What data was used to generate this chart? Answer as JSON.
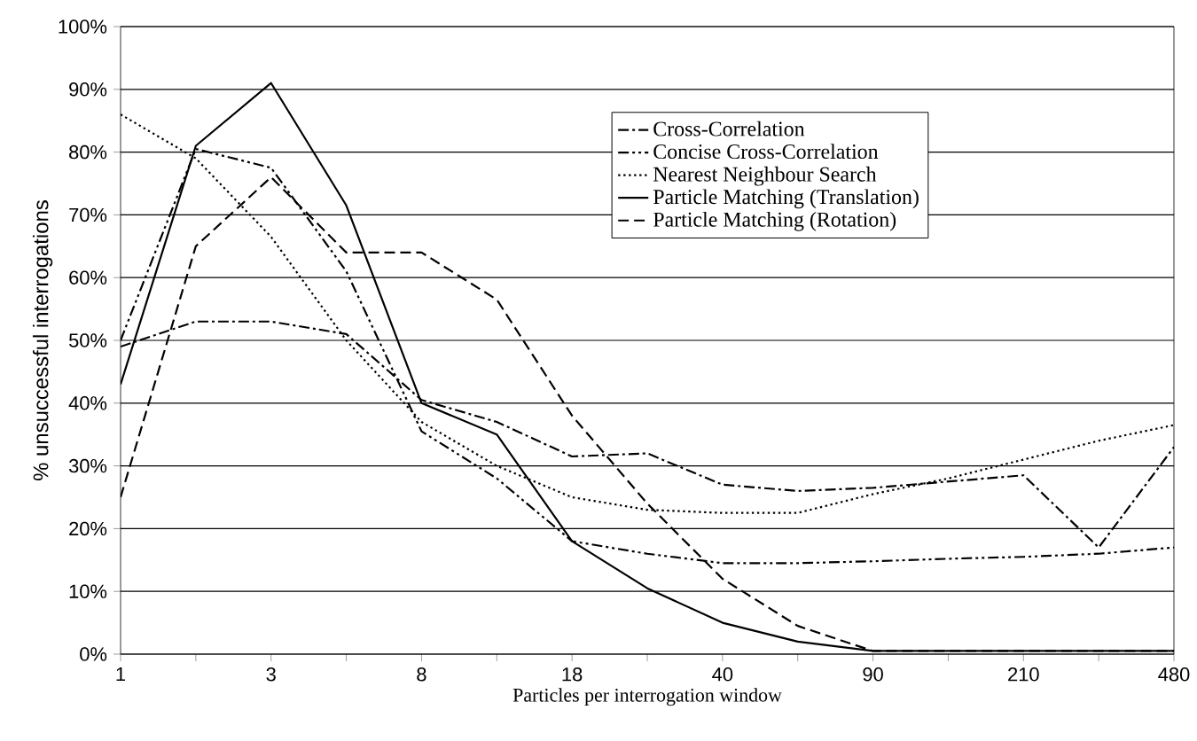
{
  "chart_data": {
    "type": "line",
    "xlabel": "Particles per interrogation window",
    "ylabel": "% unsuccessful interrogations",
    "categories": [
      "1",
      null,
      "3",
      null,
      "8",
      null,
      "18",
      null,
      "40",
      null,
      "90",
      null,
      "210",
      null,
      "480"
    ],
    "series": [
      {
        "name": "Cross-Correlation",
        "color": "#000000",
        "line_style": "dashdot",
        "values": [
          49,
          53,
          53,
          51,
          40.5,
          37,
          31.5,
          32,
          27,
          26,
          26.5,
          27.5,
          28.5,
          17,
          33
        ]
      },
      {
        "name": "Concise Cross-Correlation",
        "color": "#000000",
        "line_style": "dashdotdot",
        "values": [
          50,
          80.5,
          77.5,
          61,
          35.5,
          28,
          18,
          16,
          14.5,
          14.5,
          14.8,
          15.2,
          15.5,
          16,
          17
        ]
      },
      {
        "name": "Nearest Neighbour Search",
        "color": "#000000",
        "line_style": "dotted",
        "values": [
          86,
          79,
          66.5,
          50,
          37,
          30,
          25,
          23,
          22.5,
          22.5,
          25.5,
          28,
          31,
          34,
          36.5
        ]
      },
      {
        "name": "Particle Matching (Translation)",
        "color": "#000000",
        "line_style": "solid",
        "values": [
          43,
          81,
          91,
          71.5,
          40,
          35,
          18,
          10.5,
          5,
          2,
          0.5,
          0.5,
          0.5,
          0.5,
          0.5
        ]
      },
      {
        "name": "Particle Matching (Rotation)",
        "color": "#000000",
        "line_style": "dashed",
        "values": [
          25,
          65,
          76,
          64,
          64,
          56.5,
          38,
          24,
          12,
          4.5,
          0.5,
          0.5,
          0.5,
          0.5,
          0.5
        ]
      }
    ],
    "ylim": [
      0,
      100
    ],
    "yticks": [
      {
        "value": 0,
        "label": "0%"
      },
      {
        "value": 10,
        "label": "10%"
      },
      {
        "value": 20,
        "label": "20%"
      },
      {
        "value": 30,
        "label": "30%"
      },
      {
        "value": 40,
        "label": "40%"
      },
      {
        "value": 50,
        "label": "50%"
      },
      {
        "value": 60,
        "label": "60%"
      },
      {
        "value": 70,
        "label": "70%"
      },
      {
        "value": 80,
        "label": "80%"
      },
      {
        "value": 90,
        "label": "90%"
      },
      {
        "value": 100,
        "label": "100%"
      }
    ],
    "grid": "y",
    "legend": "top right"
  }
}
